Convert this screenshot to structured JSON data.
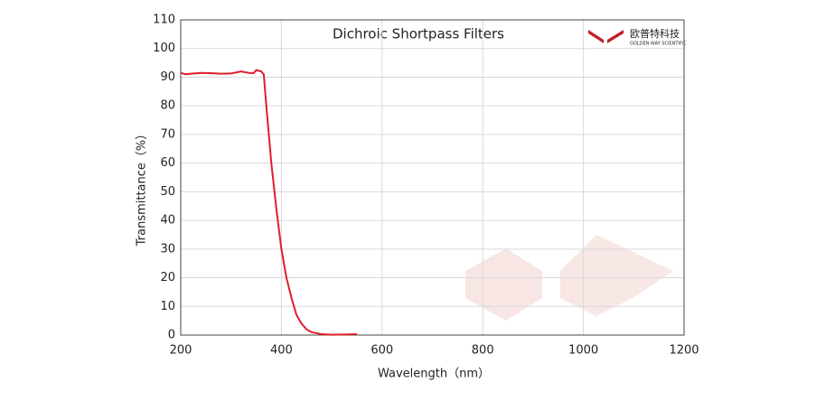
{
  "chart_data": {
    "type": "line",
    "title": "Dichroic Shortpass Filters",
    "logo": {
      "name": "欧普特科技",
      "subtitle": "GOLDEN WAY SCIENTIFIC"
    },
    "xlabel": "Wavelength（nm）",
    "ylabel": "Transmittance（%）",
    "x": [
      200,
      210,
      220,
      240,
      260,
      280,
      300,
      320,
      335,
      345,
      350,
      360,
      365,
      370,
      375,
      380,
      385,
      390,
      395,
      400,
      410,
      420,
      430,
      440,
      450,
      460,
      480,
      500,
      550
    ],
    "series": [
      {
        "name": "Transmittance",
        "color": "#e01e2b",
        "values": [
          91.5,
          91,
          91.2,
          91.5,
          91.4,
          91.2,
          91.3,
          92,
          91.5,
          91.4,
          92.5,
          92,
          91,
          80,
          70,
          60,
          52,
          44,
          37,
          30,
          20,
          13,
          7,
          4,
          2,
          1,
          0.3,
          0.1,
          0.3
        ]
      }
    ],
    "xlim": [
      200,
      1200
    ],
    "xticks": [
      200,
      400,
      600,
      800,
      1000,
      1200
    ],
    "ylim": [
      0,
      110
    ],
    "yticks": [
      0,
      10,
      20,
      30,
      40,
      50,
      60,
      70,
      80,
      90,
      100,
      110
    ],
    "grid": true
  }
}
